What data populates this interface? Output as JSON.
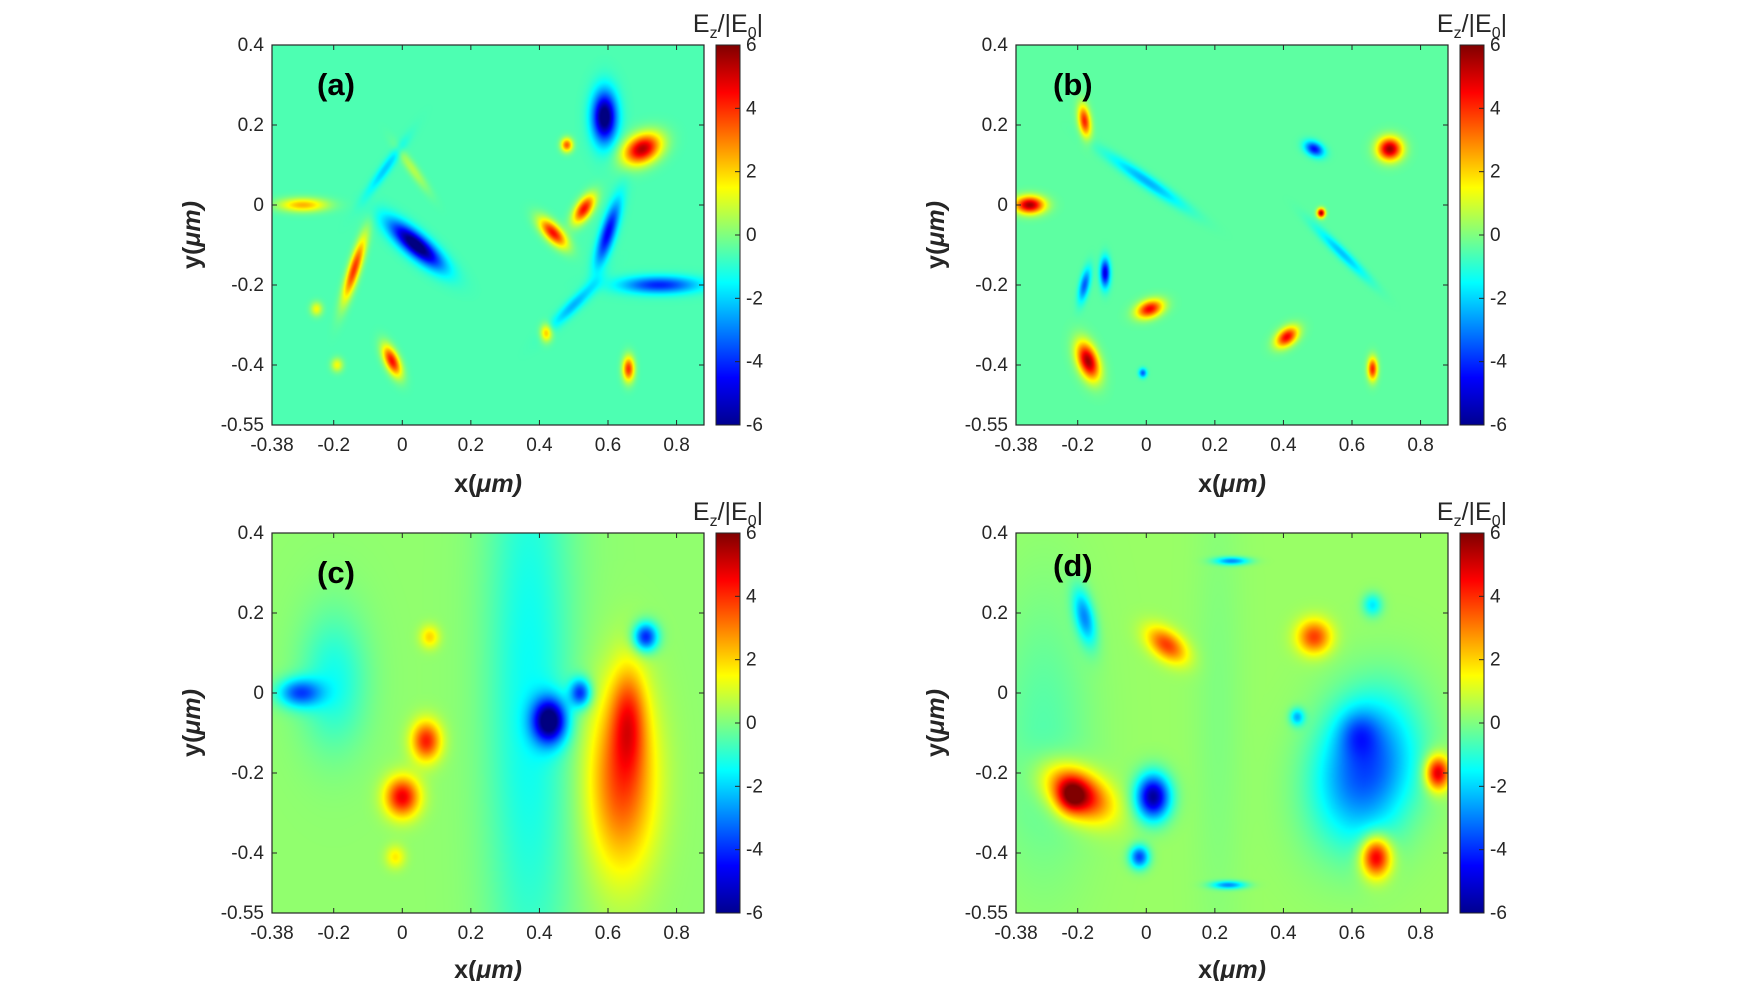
{
  "figure": {
    "colormap": "jet",
    "colors": {
      "axis": "#262626",
      "background": "#ffffff"
    }
  },
  "chart_data": [
    {
      "type": "heatmap",
      "panel_label": "(a)",
      "xlabel_var": "x(",
      "xlabel_unit": "μm)",
      "ylabel_var": "y(",
      "ylabel_unit": "μm)",
      "xlim": [
        -0.38,
        0.88
      ],
      "ylim": [
        -0.55,
        0.4
      ],
      "xticks": [
        -0.38,
        -0.2,
        0,
        0.2,
        0.4,
        0.6,
        0.8
      ],
      "xtick_labels": [
        "-0.38",
        "-0.2",
        "0",
        "0.2",
        "0.4",
        "0.6",
        "0.8"
      ],
      "yticks": [
        0.4,
        0.2,
        0,
        -0.2,
        -0.4,
        -0.55
      ],
      "ytick_labels": [
        "0.4",
        "0.2",
        "0",
        "-0.2",
        "-0.4",
        "-0.55"
      ],
      "colorbar": {
        "title_main": "E",
        "title_sub1": "z",
        "title_mid": "/|E",
        "title_sub2": "0",
        "title_end": "|",
        "range": [
          -6,
          6
        ],
        "ticks": [
          6,
          4,
          2,
          0,
          -2,
          -4,
          -6
        ],
        "tick_labels": [
          "6",
          "4",
          "2",
          "0",
          "-2",
          "-4",
          "-6"
        ]
      },
      "background_value": -0.6,
      "features": [
        {
          "x": 0.59,
          "y": 0.22,
          "value": -6,
          "sx": 0.025,
          "sy": 0.045,
          "rot": 0
        },
        {
          "x": 0.7,
          "y": 0.14,
          "value": 6,
          "sx": 0.04,
          "sy": 0.025,
          "rot": 20
        },
        {
          "x": 0.04,
          "y": -0.1,
          "value": -6,
          "sx": 0.065,
          "sy": 0.02,
          "rot": -35
        },
        {
          "x": -0.14,
          "y": -0.16,
          "value": 4.5,
          "sx": 0.012,
          "sy": 0.06,
          "rot": -20
        },
        {
          "x": 0.53,
          "y": -0.01,
          "value": 5,
          "sx": 0.015,
          "sy": 0.03,
          "rot": -40
        },
        {
          "x": 0.44,
          "y": -0.07,
          "value": 5,
          "sx": 0.035,
          "sy": 0.015,
          "rot": -40
        },
        {
          "x": 0.48,
          "y": 0.15,
          "value": 4,
          "sx": 0.012,
          "sy": 0.012,
          "rot": 0
        },
        {
          "x": -0.29,
          "y": 0.0,
          "value": 3,
          "sx": 0.05,
          "sy": 0.012,
          "rot": 0
        },
        {
          "x": 0.6,
          "y": -0.07,
          "value": -4,
          "sx": 0.015,
          "sy": 0.06,
          "rot": -20
        },
        {
          "x": 0.75,
          "y": -0.2,
          "value": -3.5,
          "sx": 0.08,
          "sy": 0.015,
          "rot": 0
        },
        {
          "x": -0.03,
          "y": -0.39,
          "value": 5,
          "sx": 0.014,
          "sy": 0.03,
          "rot": 30
        },
        {
          "x": 0.42,
          "y": -0.32,
          "value": 3,
          "sx": 0.012,
          "sy": 0.015,
          "rot": 0
        },
        {
          "x": 0.66,
          "y": -0.41,
          "value": 4.5,
          "sx": 0.012,
          "sy": 0.022,
          "rot": 0
        },
        {
          "x": -0.25,
          "y": -0.26,
          "value": 2,
          "sx": 0.012,
          "sy": 0.012,
          "rot": 0
        },
        {
          "x": -0.19,
          "y": -0.4,
          "value": 2,
          "sx": 0.012,
          "sy": 0.012,
          "rot": 0
        },
        {
          "x": 0.5,
          "y": -0.25,
          "value": -1.8,
          "sx": 0.06,
          "sy": 0.012,
          "rot": 40
        },
        {
          "x": -0.05,
          "y": 0.09,
          "value": -1.5,
          "sx": 0.06,
          "sy": 0.01,
          "rot": 50
        },
        {
          "x": 0.03,
          "y": 0.09,
          "value": 1.2,
          "sx": 0.05,
          "sy": 0.01,
          "rot": -50
        }
      ]
    },
    {
      "type": "heatmap",
      "panel_label": "(b)",
      "xlabel_var": "x(",
      "xlabel_unit": "μm)",
      "ylabel_var": "y(",
      "ylabel_unit": "μm)",
      "xlim": [
        -0.38,
        0.88
      ],
      "ylim": [
        -0.55,
        0.4
      ],
      "xticks": [
        -0.38,
        -0.2,
        0,
        0.2,
        0.4,
        0.6,
        0.8
      ],
      "xtick_labels": [
        "-0.38",
        "-0.2",
        "0",
        "0.2",
        "0.4",
        "0.6",
        "0.8"
      ],
      "yticks": [
        0.4,
        0.2,
        0,
        -0.2,
        -0.4,
        -0.55
      ],
      "ytick_labels": [
        "0.4",
        "0.2",
        "0",
        "-0.2",
        "-0.4",
        "-0.55"
      ],
      "colorbar": {
        "title_main": "E",
        "title_sub1": "z",
        "title_mid": "/|E",
        "title_sub2": "0",
        "title_end": "|",
        "range": [
          -6,
          6
        ],
        "ticks": [
          6,
          4,
          2,
          0,
          -2,
          -4,
          -6
        ],
        "tick_labels": [
          "6",
          "4",
          "2",
          "0",
          "-2",
          "-4",
          "-6"
        ]
      },
      "background_value": -0.4,
      "features": [
        {
          "x": -0.34,
          "y": 0.0,
          "value": 6,
          "sx": 0.03,
          "sy": 0.015,
          "rot": 0
        },
        {
          "x": -0.18,
          "y": 0.21,
          "value": 4.5,
          "sx": 0.012,
          "sy": 0.028,
          "rot": 10
        },
        {
          "x": -0.17,
          "y": -0.39,
          "value": 6,
          "sx": 0.02,
          "sy": 0.035,
          "rot": 25
        },
        {
          "x": 0.01,
          "y": -0.26,
          "value": 5,
          "sx": 0.028,
          "sy": 0.015,
          "rot": 15
        },
        {
          "x": -0.12,
          "y": -0.17,
          "value": -4.5,
          "sx": 0.01,
          "sy": 0.025,
          "rot": 0
        },
        {
          "x": -0.18,
          "y": -0.2,
          "value": -3,
          "sx": 0.01,
          "sy": 0.03,
          "rot": -15
        },
        {
          "x": 0.49,
          "y": 0.14,
          "value": -4,
          "sx": 0.02,
          "sy": 0.012,
          "rot": -20
        },
        {
          "x": 0.71,
          "y": 0.14,
          "value": 6,
          "sx": 0.025,
          "sy": 0.02,
          "rot": 0
        },
        {
          "x": 0.51,
          "y": -0.02,
          "value": 6,
          "sx": 0.008,
          "sy": 0.008,
          "rot": 0
        },
        {
          "x": 0.41,
          "y": -0.33,
          "value": 5,
          "sx": 0.025,
          "sy": 0.015,
          "rot": 30
        },
        {
          "x": 0.66,
          "y": -0.41,
          "value": 4.5,
          "sx": 0.01,
          "sy": 0.02,
          "rot": 0
        },
        {
          "x": -0.01,
          "y": -0.42,
          "value": -3,
          "sx": 0.008,
          "sy": 0.008,
          "rot": 0
        },
        {
          "x": 0.0,
          "y": 0.06,
          "value": -2,
          "sx": 0.09,
          "sy": 0.012,
          "rot": -30
        },
        {
          "x": 0.57,
          "y": -0.12,
          "value": -1.8,
          "sx": 0.07,
          "sy": 0.01,
          "rot": -40
        }
      ]
    },
    {
      "type": "heatmap",
      "panel_label": "(c)",
      "xlabel_var": "x(",
      "xlabel_unit": "μm)",
      "ylabel_var": "y(",
      "ylabel_unit": "μm)",
      "xlim": [
        -0.38,
        0.88
      ],
      "ylim": [
        -0.55,
        0.4
      ],
      "xticks": [
        -0.38,
        -0.2,
        0,
        0.2,
        0.4,
        0.6,
        0.8
      ],
      "xtick_labels": [
        "-0.38",
        "-0.2",
        "0",
        "0.2",
        "0.4",
        "0.6",
        "0.8"
      ],
      "yticks": [
        0.4,
        0.2,
        0,
        -0.2,
        -0.4,
        -0.55
      ],
      "ytick_labels": [
        "0.4",
        "0.2",
        "0",
        "-0.2",
        "-0.4",
        "-0.55"
      ],
      "colorbar": {
        "title_main": "E",
        "title_sub1": "z",
        "title_mid": "/|E",
        "title_sub2": "0",
        "title_end": "|",
        "range": [
          -6,
          6
        ],
        "ticks": [
          6,
          4,
          2,
          0,
          -2,
          -4,
          -6
        ],
        "tick_labels": [
          "6",
          "4",
          "2",
          "0",
          "-2",
          "-4",
          "-6"
        ]
      },
      "background_value": 0.2,
      "features": [
        {
          "x": 0.37,
          "y": 0.0,
          "value": -1.6,
          "sx": 0.09,
          "sy": 0.6,
          "rot": 0
        },
        {
          "x": -0.3,
          "y": 0.0,
          "value": -3.5,
          "sx": 0.045,
          "sy": 0.025,
          "rot": 0
        },
        {
          "x": -0.2,
          "y": 0.03,
          "value": -1.5,
          "sx": 0.07,
          "sy": 0.12,
          "rot": 0
        },
        {
          "x": 0.07,
          "y": -0.12,
          "value": 4,
          "sx": 0.03,
          "sy": 0.035,
          "rot": 0
        },
        {
          "x": 0.0,
          "y": -0.26,
          "value": 4.5,
          "sx": 0.035,
          "sy": 0.035,
          "rot": 0
        },
        {
          "x": 0.64,
          "y": -0.22,
          "value": 3.5,
          "sx": 0.07,
          "sy": 0.16,
          "rot": 0
        },
        {
          "x": 0.66,
          "y": -0.06,
          "value": 2.5,
          "sx": 0.035,
          "sy": 0.09,
          "rot": 0
        },
        {
          "x": 0.43,
          "y": -0.07,
          "value": -6,
          "sx": 0.035,
          "sy": 0.04,
          "rot": 0
        },
        {
          "x": 0.52,
          "y": 0.0,
          "value": -4,
          "sx": 0.022,
          "sy": 0.025,
          "rot": 0
        },
        {
          "x": 0.71,
          "y": 0.14,
          "value": -4.5,
          "sx": 0.025,
          "sy": 0.025,
          "rot": 0
        },
        {
          "x": 0.08,
          "y": 0.14,
          "value": 1.8,
          "sx": 0.02,
          "sy": 0.02,
          "rot": 0
        },
        {
          "x": -0.02,
          "y": -0.41,
          "value": 1.5,
          "sx": 0.02,
          "sy": 0.02,
          "rot": 0
        }
      ]
    },
    {
      "type": "heatmap",
      "panel_label": "(d)",
      "xlabel_var": "x(",
      "xlabel_unit": "μm)",
      "ylabel_var": "y(",
      "ylabel_unit": "μm)",
      "xlim": [
        -0.38,
        0.88
      ],
      "ylim": [
        -0.55,
        0.4
      ],
      "xticks": [
        -0.38,
        -0.2,
        0,
        0.2,
        0.4,
        0.6,
        0.8
      ],
      "xtick_labels": [
        "-0.38",
        "-0.2",
        "0",
        "0.2",
        "0.4",
        "0.6",
        "0.8"
      ],
      "yticks": [
        0.4,
        0.2,
        0,
        -0.2,
        -0.4,
        -0.55
      ],
      "ytick_labels": [
        "0.4",
        "0.2",
        "0",
        "-0.2",
        "-0.4",
        "-0.55"
      ],
      "colorbar": {
        "title_main": "E",
        "title_sub1": "z",
        "title_mid": "/|E",
        "title_sub2": "0",
        "title_end": "|",
        "range": [
          -6,
          6
        ],
        "ticks": [
          6,
          4,
          2,
          0,
          -2,
          -4,
          -6
        ],
        "tick_labels": [
          "6",
          "4",
          "2",
          "0",
          "-2",
          "-4",
          "-6"
        ]
      },
      "background_value": 0.3,
      "features": [
        {
          "x": -0.3,
          "y": -0.1,
          "value": -0.8,
          "sx": 0.1,
          "sy": 0.25,
          "rot": 0
        },
        {
          "x": -0.2,
          "y": -0.25,
          "value": 5,
          "sx": 0.07,
          "sy": 0.04,
          "rot": -25
        },
        {
          "x": -0.22,
          "y": -0.26,
          "value": 2.5,
          "sx": 0.03,
          "sy": 0.03,
          "rot": 0
        },
        {
          "x": 0.02,
          "y": -0.26,
          "value": -6,
          "sx": 0.035,
          "sy": 0.04,
          "rot": 0
        },
        {
          "x": -0.02,
          "y": -0.41,
          "value": -4,
          "sx": 0.02,
          "sy": 0.02,
          "rot": 0
        },
        {
          "x": -0.18,
          "y": 0.19,
          "value": -3,
          "sx": 0.02,
          "sy": 0.05,
          "rot": 15
        },
        {
          "x": 0.06,
          "y": 0.12,
          "value": 3.5,
          "sx": 0.045,
          "sy": 0.025,
          "rot": -30
        },
        {
          "x": 0.49,
          "y": 0.14,
          "value": 3.5,
          "sx": 0.035,
          "sy": 0.03,
          "rot": 0
        },
        {
          "x": 0.64,
          "y": -0.19,
          "value": -4,
          "sx": 0.1,
          "sy": 0.13,
          "rot": -20
        },
        {
          "x": 0.62,
          "y": -0.1,
          "value": -1.5,
          "sx": 0.04,
          "sy": 0.04,
          "rot": 0
        },
        {
          "x": 0.85,
          "y": -0.2,
          "value": 5,
          "sx": 0.025,
          "sy": 0.03,
          "rot": 0
        },
        {
          "x": 0.67,
          "y": -0.41,
          "value": 5,
          "sx": 0.03,
          "sy": 0.035,
          "rot": 0
        },
        {
          "x": 0.21,
          "y": -0.05,
          "value": -0.3,
          "sx": 0.05,
          "sy": 0.45,
          "rot": 0
        },
        {
          "x": 0.25,
          "y": 0.33,
          "value": -3,
          "sx": 0.035,
          "sy": 0.007,
          "rot": 0
        },
        {
          "x": 0.24,
          "y": -0.48,
          "value": -3,
          "sx": 0.035,
          "sy": 0.007,
          "rot": 0
        },
        {
          "x": 0.44,
          "y": -0.06,
          "value": -2.5,
          "sx": 0.015,
          "sy": 0.015,
          "rot": 0
        },
        {
          "x": 0.66,
          "y": 0.22,
          "value": -2,
          "sx": 0.02,
          "sy": 0.02,
          "rot": 0
        }
      ]
    }
  ]
}
